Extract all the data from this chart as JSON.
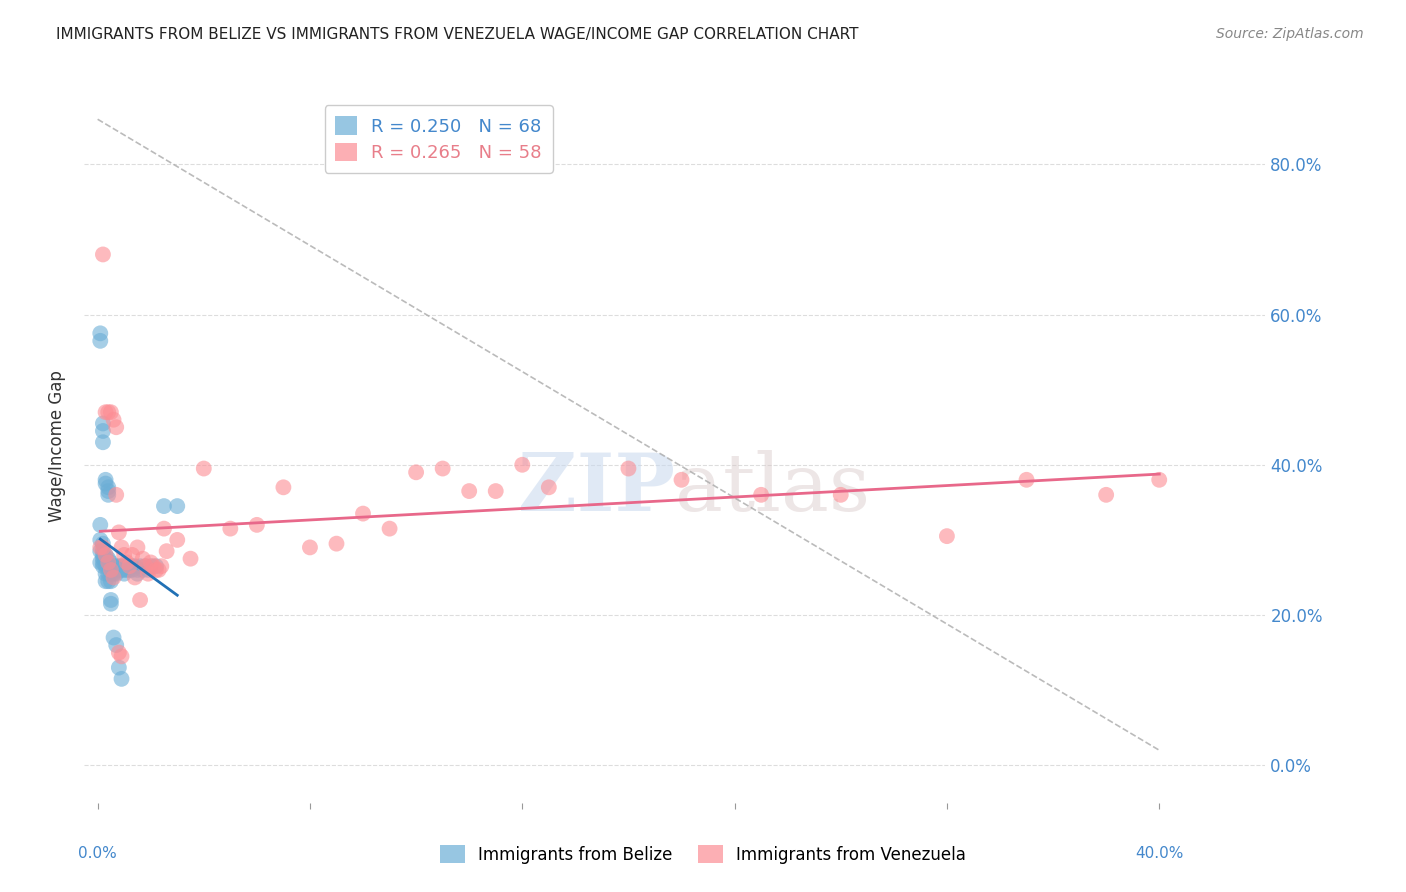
{
  "title": "IMMIGRANTS FROM BELIZE VS IMMIGRANTS FROM VENEZUELA WAGE/INCOME GAP CORRELATION CHART",
  "source": "Source: ZipAtlas.com",
  "ylabel": "Wage/Income Gap",
  "ytick_labels": [
    "0.0%",
    "20.0%",
    "40.0%",
    "60.0%",
    "80.0%"
  ],
  "ytick_values": [
    0.0,
    0.2,
    0.4,
    0.6,
    0.8
  ],
  "xlim": [
    -0.005,
    0.44
  ],
  "ylim": [
    -0.05,
    0.9
  ],
  "legend": {
    "belize_R": "0.250",
    "belize_N": "68",
    "venezuela_R": "0.265",
    "venezuela_N": "58"
  },
  "belize_color": "#6baed6",
  "venezuela_color": "#fc8d94",
  "belize_line_color": "#2171b5",
  "venezuela_line_color": "#e8688a",
  "dashed_line_color": "#aaaaaa",
  "watermark_zip": "ZIP",
  "watermark_atlas": "atlas",
  "background_color": "#ffffff",
  "grid_color": "#dddddd",
  "belize_x": [
    0.001,
    0.001,
    0.001,
    0.001,
    0.002,
    0.002,
    0.002,
    0.002,
    0.002,
    0.002,
    0.003,
    0.003,
    0.003,
    0.003,
    0.003,
    0.003,
    0.004,
    0.004,
    0.004,
    0.004,
    0.005,
    0.005,
    0.005,
    0.005,
    0.006,
    0.006,
    0.007,
    0.007,
    0.008,
    0.008,
    0.009,
    0.009,
    0.01,
    0.01,
    0.01,
    0.011,
    0.011,
    0.012,
    0.012,
    0.013,
    0.013,
    0.014,
    0.015,
    0.015,
    0.016,
    0.017,
    0.018,
    0.019,
    0.02,
    0.022,
    0.001,
    0.001,
    0.002,
    0.002,
    0.002,
    0.003,
    0.003,
    0.004,
    0.004,
    0.004,
    0.005,
    0.005,
    0.006,
    0.007,
    0.008,
    0.009,
    0.025,
    0.03
  ],
  "belize_y": [
    0.27,
    0.32,
    0.285,
    0.3,
    0.295,
    0.285,
    0.28,
    0.275,
    0.27,
    0.265,
    0.28,
    0.275,
    0.27,
    0.265,
    0.255,
    0.245,
    0.275,
    0.265,
    0.255,
    0.245,
    0.27,
    0.265,
    0.255,
    0.245,
    0.265,
    0.255,
    0.265,
    0.255,
    0.265,
    0.26,
    0.265,
    0.26,
    0.265,
    0.26,
    0.255,
    0.265,
    0.26,
    0.265,
    0.26,
    0.265,
    0.26,
    0.265,
    0.26,
    0.255,
    0.265,
    0.26,
    0.265,
    0.26,
    0.265,
    0.265,
    0.565,
    0.575,
    0.455,
    0.445,
    0.43,
    0.38,
    0.375,
    0.37,
    0.365,
    0.36,
    0.215,
    0.22,
    0.17,
    0.16,
    0.13,
    0.115,
    0.345,
    0.345
  ],
  "venezuela_x": [
    0.001,
    0.002,
    0.003,
    0.004,
    0.005,
    0.006,
    0.007,
    0.008,
    0.009,
    0.01,
    0.011,
    0.012,
    0.013,
    0.014,
    0.015,
    0.016,
    0.017,
    0.018,
    0.019,
    0.02,
    0.021,
    0.022,
    0.023,
    0.024,
    0.025,
    0.026,
    0.03,
    0.035,
    0.04,
    0.05,
    0.06,
    0.07,
    0.08,
    0.09,
    0.1,
    0.11,
    0.12,
    0.13,
    0.14,
    0.15,
    0.16,
    0.17,
    0.2,
    0.22,
    0.25,
    0.28,
    0.32,
    0.35,
    0.38,
    0.4,
    0.002,
    0.003,
    0.004,
    0.005,
    0.006,
    0.007,
    0.008,
    0.009
  ],
  "venezuela_y": [
    0.29,
    0.29,
    0.28,
    0.27,
    0.26,
    0.25,
    0.36,
    0.31,
    0.29,
    0.28,
    0.27,
    0.265,
    0.28,
    0.25,
    0.29,
    0.22,
    0.275,
    0.265,
    0.255,
    0.27,
    0.265,
    0.26,
    0.26,
    0.265,
    0.315,
    0.285,
    0.3,
    0.275,
    0.395,
    0.315,
    0.32,
    0.37,
    0.29,
    0.295,
    0.335,
    0.315,
    0.39,
    0.395,
    0.365,
    0.365,
    0.4,
    0.37,
    0.395,
    0.38,
    0.36,
    0.36,
    0.305,
    0.38,
    0.36,
    0.38,
    0.68,
    0.47,
    0.47,
    0.47,
    0.46,
    0.45,
    0.15,
    0.145
  ]
}
